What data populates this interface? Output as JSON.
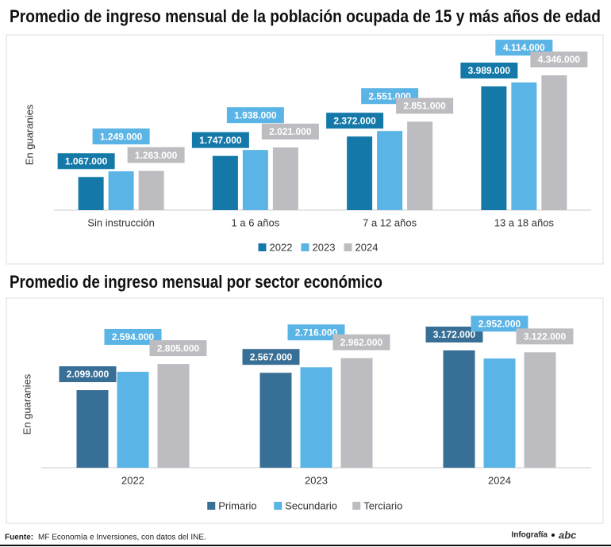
{
  "chart_data": [
    {
      "type": "bar",
      "title": "Promedio de ingreso mensual de la población ocupada de 15 y más años de edad",
      "y_label": "En guaranies",
      "categories": [
        "Sin instrucción",
        "1 a 6 años",
        "7 a 12 años",
        "13 a 18 años"
      ],
      "series": [
        {
          "name": "2022",
          "color": "#1479a8",
          "values": [
            1067000,
            1747000,
            2372000,
            3989000
          ],
          "value_labels": [
            "1.067.000",
            "1.747.000",
            "2.372.000",
            "3.989.000"
          ]
        },
        {
          "name": "2023",
          "color": "#5ab4e5",
          "values": [
            1249000,
            1938000,
            2551000,
            4114000
          ],
          "value_labels": [
            "1.249.000",
            "1.938.000",
            "2.551.000",
            "4.114.000"
          ]
        },
        {
          "name": "2024",
          "color": "#bdbdc1",
          "values": [
            1263000,
            2021000,
            2851000,
            4346000
          ],
          "value_labels": [
            "1.263.000",
            "2.021.000",
            "2.851.000",
            "4.346.000"
          ]
        }
      ]
    },
    {
      "type": "bar",
      "title": "Promedio de ingreso mensual por sector económico",
      "y_label": "En guaranies",
      "categories": [
        "2022",
        "2023",
        "2024"
      ],
      "series": [
        {
          "name": "Primario",
          "color": "#386f96",
          "values": [
            2099000,
            2567000,
            3172000
          ],
          "value_labels": [
            "2.099.000",
            "2.567.000",
            "3.172.000"
          ]
        },
        {
          "name": "Secundario",
          "color": "#5ab4e5",
          "values": [
            2594000,
            2716000,
            2952000
          ],
          "value_labels": [
            "2.594.000",
            "2.716.000",
            "2.952.000"
          ]
        },
        {
          "name": "Terciario",
          "color": "#bdbdc1",
          "values": [
            2805000,
            2962000,
            3122000
          ],
          "value_labels": [
            "2.805.000",
            "2.962.000",
            "3.122.000"
          ]
        }
      ]
    }
  ],
  "footer": {
    "source_label": "Fuente:",
    "source": "MF Economía e Inversiones, con datos del INE.",
    "credit": "Infografía",
    "brand": "abc"
  }
}
